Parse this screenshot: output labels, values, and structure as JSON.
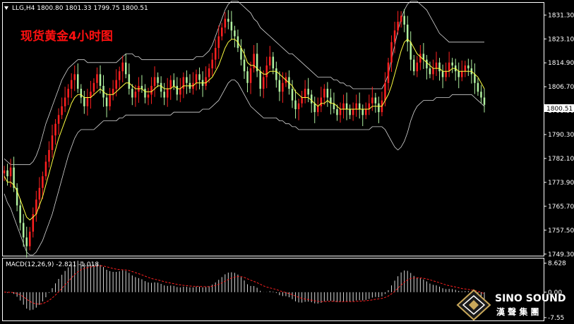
{
  "chart_data": [
    {
      "type": "candlestick",
      "header": "LLG,H4  1800.80 1801.33 1799.75 1800.51",
      "title": "现货黄金4小时图",
      "current_price": 1800.51,
      "ylim": [
        1749.0,
        1835.0
      ],
      "y_ticks": [
        "1831.30",
        "1823.10",
        "1814.90",
        "1806.70",
        "1798.50",
        "1790.30",
        "1782.10",
        "1773.90",
        "1765.70",
        "1757.50",
        "1749.30"
      ],
      "y_tick_values": [
        1831.3,
        1823.1,
        1814.9,
        1806.7,
        1798.5,
        1790.3,
        1782.1,
        1773.9,
        1765.7,
        1757.5,
        1749.3
      ],
      "colors": {
        "up": "#ff2020",
        "down": "#b0f0a0",
        "ma": "#ffff40",
        "bands": "#d8d8d8",
        "grid": "#ffffff"
      },
      "close": [
        1778,
        1776,
        1779,
        1772,
        1766,
        1760,
        1755,
        1752,
        1757,
        1763,
        1768,
        1772,
        1776,
        1781,
        1785,
        1790,
        1794,
        1797,
        1800,
        1803,
        1806,
        1809,
        1811,
        1806,
        1803,
        1800,
        1803,
        1805,
        1808,
        1811,
        1807,
        1803,
        1800,
        1804,
        1806,
        1809,
        1812,
        1815,
        1811,
        1806,
        1803,
        1805,
        1807,
        1806,
        1803,
        1804,
        1807,
        1810,
        1808,
        1805,
        1803,
        1806,
        1809,
        1807,
        1804,
        1806,
        1810,
        1808,
        1806,
        1808,
        1811,
        1809,
        1807,
        1810,
        1813,
        1816,
        1820,
        1824,
        1827,
        1830,
        1829,
        1826,
        1824,
        1820,
        1816,
        1812,
        1808,
        1813,
        1818,
        1812,
        1806,
        1810,
        1814,
        1817,
        1813,
        1809,
        1805,
        1808,
        1810,
        1806,
        1802,
        1799,
        1801,
        1803,
        1806,
        1804,
        1801,
        1798,
        1800,
        1803,
        1806,
        1803,
        1801,
        1799,
        1797,
        1799,
        1801,
        1799,
        1797,
        1799,
        1801,
        1799,
        1797,
        1799,
        1801,
        1803,
        1801,
        1798,
        1802,
        1808,
        1815,
        1822,
        1826,
        1829,
        1831,
        1828,
        1822,
        1816,
        1812,
        1815,
        1818,
        1816,
        1813,
        1811,
        1813,
        1815,
        1812,
        1810,
        1812,
        1815,
        1814,
        1812,
        1810,
        1812,
        1814,
        1813,
        1811,
        1808,
        1805,
        1803,
        1800.5
      ],
      "ma": [
        1776,
        1774,
        1774,
        1773,
        1771,
        1768,
        1765,
        1762,
        1761,
        1762,
        1763,
        1766,
        1769,
        1773,
        1777,
        1781,
        1785,
        1789,
        1792,
        1795,
        1798,
        1801,
        1803,
        1804,
        1804,
        1803,
        1803,
        1803,
        1804,
        1805,
        1806,
        1805,
        1804,
        1804,
        1804,
        1805,
        1806,
        1807,
        1808,
        1808,
        1807,
        1806,
        1806,
        1806,
        1805,
        1805,
        1805,
        1806,
        1807,
        1807,
        1806,
        1806,
        1806,
        1807,
        1806,
        1806,
        1807,
        1807,
        1807,
        1807,
        1808,
        1808,
        1808,
        1808,
        1809,
        1810,
        1812,
        1814,
        1817,
        1820,
        1822,
        1823,
        1823,
        1822,
        1820,
        1818,
        1815,
        1814,
        1814,
        1813,
        1812,
        1811,
        1811,
        1812,
        1812,
        1812,
        1811,
        1810,
        1809,
        1808,
        1807,
        1805,
        1804,
        1803,
        1803,
        1803,
        1802,
        1801,
        1800,
        1801,
        1801,
        1802,
        1801,
        1801,
        1800,
        1799,
        1799,
        1799,
        1799,
        1799,
        1799,
        1799,
        1799,
        1799,
        1799,
        1800,
        1800,
        1800,
        1800,
        1802,
        1804,
        1807,
        1811,
        1815,
        1819,
        1822,
        1823,
        1822,
        1820,
        1818,
        1817,
        1816,
        1815,
        1814,
        1813,
        1813,
        1813,
        1812,
        1812,
        1812,
        1813,
        1813,
        1812,
        1812,
        1812,
        1812,
        1812,
        1811,
        1810,
        1808,
        1806
      ],
      "upper_band": [
        1782,
        1781,
        1780,
        1780,
        1780,
        1780,
        1780,
        1780,
        1780,
        1781,
        1783,
        1786,
        1790,
        1794,
        1797,
        1800,
        1803,
        1806,
        1809,
        1811,
        1813,
        1814,
        1815,
        1816,
        1816,
        1816,
        1815,
        1815,
        1815,
        1815,
        1815,
        1815,
        1815,
        1815,
        1815,
        1815,
        1816,
        1817,
        1818,
        1818,
        1818,
        1817,
        1817,
        1816,
        1816,
        1816,
        1816,
        1816,
        1816,
        1816,
        1816,
        1816,
        1816,
        1816,
        1816,
        1816,
        1816,
        1816,
        1816,
        1816,
        1817,
        1817,
        1817,
        1818,
        1819,
        1821,
        1824,
        1827,
        1830,
        1833,
        1835,
        1836,
        1836,
        1836,
        1835,
        1834,
        1833,
        1832,
        1830,
        1829,
        1827,
        1826,
        1825,
        1824,
        1823,
        1822,
        1821,
        1820,
        1819,
        1818,
        1818,
        1817,
        1816,
        1815,
        1814,
        1813,
        1812,
        1811,
        1810,
        1810,
        1810,
        1810,
        1810,
        1809,
        1809,
        1808,
        1808,
        1807,
        1807,
        1806,
        1806,
        1806,
        1806,
        1806,
        1806,
        1806,
        1806,
        1806,
        1806,
        1808,
        1811,
        1816,
        1821,
        1826,
        1830,
        1833,
        1835,
        1836,
        1836,
        1836,
        1835,
        1834,
        1833,
        1831,
        1829,
        1827,
        1825,
        1824,
        1823,
        1822,
        1822,
        1822,
        1822,
        1822,
        1822,
        1822,
        1822,
        1822,
        1822,
        1822,
        1822
      ],
      "lower_band": [
        1770,
        1767,
        1765,
        1762,
        1759,
        1756,
        1753,
        1750,
        1749,
        1749,
        1750,
        1752,
        1754,
        1757,
        1760,
        1763,
        1767,
        1771,
        1775,
        1779,
        1783,
        1786,
        1789,
        1791,
        1792,
        1792,
        1792,
        1792,
        1792,
        1793,
        1794,
        1795,
        1795,
        1795,
        1795,
        1795,
        1796,
        1796,
        1797,
        1797,
        1797,
        1797,
        1797,
        1797,
        1797,
        1797,
        1797,
        1797,
        1797,
        1797,
        1797,
        1797,
        1797,
        1798,
        1798,
        1798,
        1798,
        1798,
        1798,
        1798,
        1798,
        1798,
        1799,
        1799,
        1799,
        1800,
        1801,
        1802,
        1804,
        1806,
        1808,
        1809,
        1809,
        1808,
        1806,
        1804,
        1802,
        1800,
        1799,
        1798,
        1797,
        1796,
        1796,
        1796,
        1796,
        1796,
        1795,
        1795,
        1794,
        1794,
        1793,
        1793,
        1792,
        1792,
        1792,
        1792,
        1792,
        1792,
        1792,
        1792,
        1792,
        1792,
        1792,
        1792,
        1792,
        1792,
        1792,
        1792,
        1792,
        1792,
        1792,
        1792,
        1792,
        1792,
        1792,
        1793,
        1793,
        1793,
        1793,
        1792,
        1790,
        1788,
        1786,
        1785,
        1786,
        1788,
        1791,
        1795,
        1798,
        1800,
        1801,
        1802,
        1802,
        1802,
        1802,
        1803,
        1803,
        1803,
        1803,
        1803,
        1804,
        1804,
        1804,
        1804,
        1804,
        1804,
        1804,
        1803,
        1802,
        1801,
        1800
      ]
    },
    {
      "type": "bar",
      "label": "MACD(12,26,9) -2.821 -1.018",
      "y_ticks": [
        "8.628",
        "0.00",
        "-7.55"
      ],
      "y_tick_values": [
        8.628,
        0,
        -7.55
      ],
      "ylim": [
        -8.2,
        9.6
      ]
    }
  ],
  "logo": {
    "line1": "SINO SOUND",
    "line2": "漢 聲 集 團"
  }
}
